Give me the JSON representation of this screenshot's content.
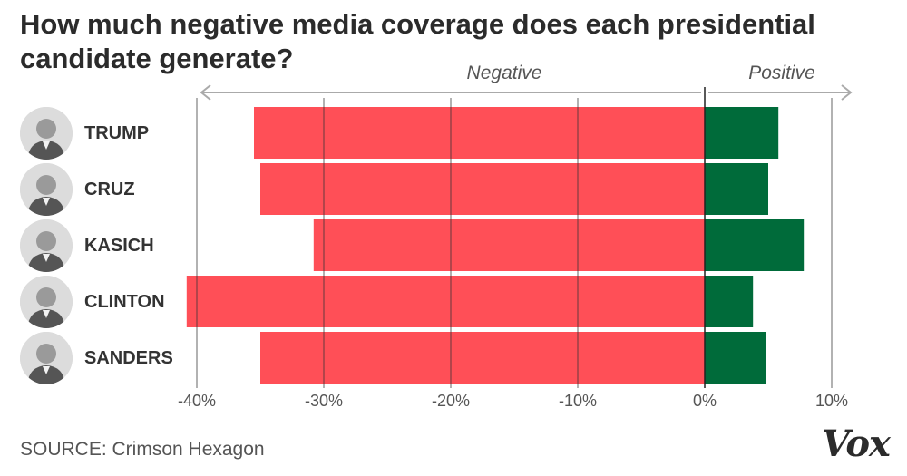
{
  "title": "How much negative media coverage does each presidential candidate generate?",
  "source": "SOURCE: Crimson Hexagon",
  "logo_text": "Vox",
  "colors": {
    "negative": "#ff4f57",
    "positive": "#006b3a",
    "gridline": "#333333",
    "arrow": "#aaaaaa",
    "axis_text": "#555555"
  },
  "chart_data": {
    "type": "bar",
    "orientation": "horizontal",
    "direction_labels": {
      "left": "Negative",
      "right": "Positive"
    },
    "categories": [
      "TRUMP",
      "CRUZ",
      "KASICH",
      "CLINTON",
      "SANDERS"
    ],
    "series": [
      {
        "name": "Negative",
        "values": [
          -35.5,
          -35,
          -30.8,
          -40.8,
          -35
        ]
      },
      {
        "name": "Positive",
        "values": [
          5.8,
          5,
          7.8,
          3.8,
          4.8
        ]
      }
    ],
    "xlim": [
      -40,
      10
    ],
    "xticks": [
      -40,
      -30,
      -20,
      -10,
      0,
      10
    ],
    "xtick_labels": [
      "-40%",
      "-30%",
      "-20%",
      "-10%",
      "0%",
      "10%"
    ],
    "grid": true
  },
  "avatar_icons": [
    "trump-portrait-icon",
    "cruz-portrait-icon",
    "kasich-portrait-icon",
    "clinton-portrait-icon",
    "sanders-portrait-icon"
  ]
}
